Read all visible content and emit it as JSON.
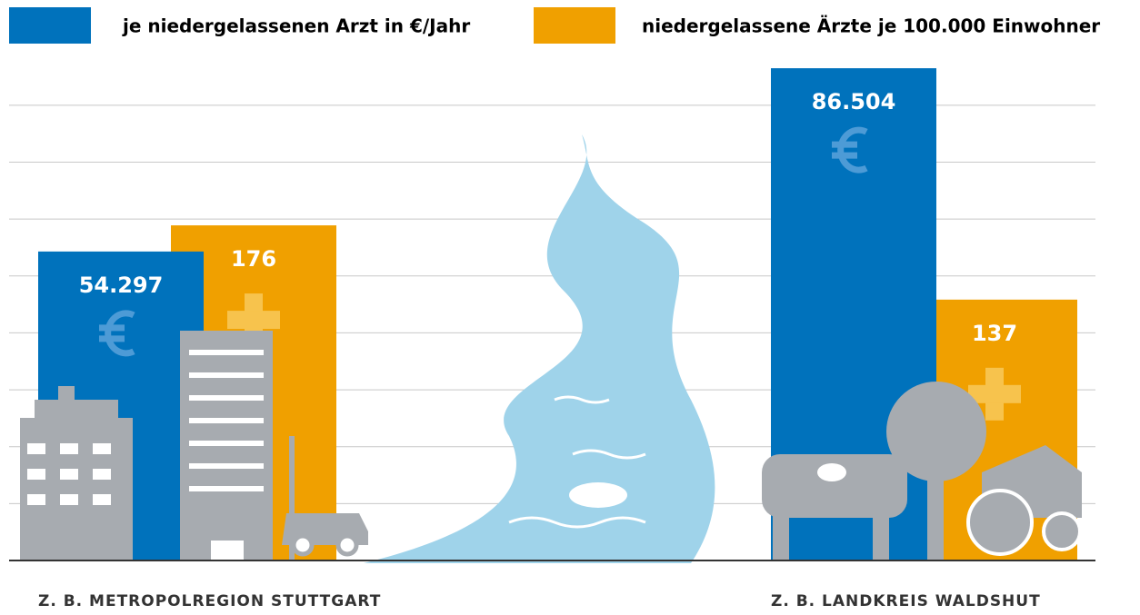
{
  "chart_data": {
    "type": "bar",
    "categories": [
      "Z. B. METROPOLREGION STUTTGART",
      "Z. B. LANDKREIS WALDSHUT"
    ],
    "series": [
      {
        "name": "je niedergelassenen Arzt in €/Jahr",
        "color": "#0072bc",
        "values": [
          54297,
          86504
        ],
        "value_labels": [
          "54.297",
          "86.504"
        ]
      },
      {
        "name": "niedergelassene Ärzte je 100.000 Einwohner",
        "color": "#f0a000",
        "values": [
          176,
          137
        ],
        "axis": "y2"
      }
    ],
    "ylim": [
      0,
      87000
    ],
    "yticks": [
      0,
      10000,
      20000,
      30000,
      40000,
      50000,
      60000,
      70000,
      80000
    ],
    "y2lim": [
      0,
      260
    ],
    "grid": true
  }
}
